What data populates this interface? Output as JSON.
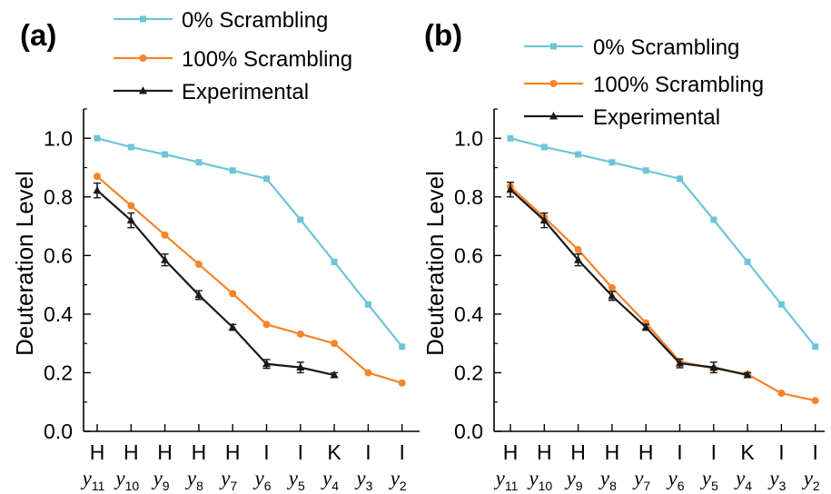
{
  "chart_data": [
    {
      "type": "line",
      "panel_label": "(a)",
      "ylabel": "Deuteration Level",
      "xlabel": "",
      "ylim": [
        0.0,
        1.1
      ],
      "yticks": [
        "0.0",
        "0.2",
        "0.4",
        "0.6",
        "0.8",
        "1.0"
      ],
      "categories": [
        {
          "residue": "H",
          "ion": "y",
          "sub": "11"
        },
        {
          "residue": "H",
          "ion": "y",
          "sub": "10"
        },
        {
          "residue": "H",
          "ion": "y",
          "sub": "9"
        },
        {
          "residue": "H",
          "ion": "y",
          "sub": "8"
        },
        {
          "residue": "H",
          "ion": "y",
          "sub": "7"
        },
        {
          "residue": "I",
          "ion": "y",
          "sub": "6"
        },
        {
          "residue": "I",
          "ion": "y",
          "sub": "5"
        },
        {
          "residue": "K",
          "ion": "y",
          "sub": "4"
        },
        {
          "residue": "I",
          "ion": "y",
          "sub": "3"
        },
        {
          "residue": "I",
          "ion": "y",
          "sub": "2"
        }
      ],
      "legend_position": "top",
      "series": [
        {
          "name": "0% Scrambling",
          "color": "#6cc5d8",
          "marker": "square",
          "values": [
            1.0,
            0.97,
            0.945,
            0.918,
            0.89,
            0.862,
            0.722,
            0.578,
            0.433,
            0.289
          ]
        },
        {
          "name": "100% Scrambling",
          "color": "#f5842a",
          "marker": "circle",
          "values": [
            0.87,
            0.77,
            0.67,
            0.57,
            0.47,
            0.365,
            0.332,
            0.3,
            0.2,
            0.165
          ]
        },
        {
          "name": "Experimental",
          "color": "#1a1a1a",
          "marker": "triangle",
          "values": [
            0.822,
            0.72,
            0.585,
            0.465,
            0.355,
            0.23,
            0.218,
            0.192,
            null,
            null
          ],
          "errors": [
            0.025,
            0.025,
            0.02,
            0.015,
            0.01,
            0.015,
            0.018,
            0.008,
            null,
            null
          ]
        }
      ]
    },
    {
      "type": "line",
      "panel_label": "(b)",
      "ylabel": "Deuteration Level",
      "xlabel": "",
      "ylim": [
        0.0,
        1.1
      ],
      "yticks": [
        "0.0",
        "0.2",
        "0.4",
        "0.6",
        "0.8",
        "1.0"
      ],
      "categories": [
        {
          "residue": "H",
          "ion": "y",
          "sub": "11"
        },
        {
          "residue": "H",
          "ion": "y",
          "sub": "10"
        },
        {
          "residue": "H",
          "ion": "y",
          "sub": "9"
        },
        {
          "residue": "H",
          "ion": "y",
          "sub": "8"
        },
        {
          "residue": "H",
          "ion": "y",
          "sub": "7"
        },
        {
          "residue": "I",
          "ion": "y",
          "sub": "6"
        },
        {
          "residue": "I",
          "ion": "y",
          "sub": "5"
        },
        {
          "residue": "K",
          "ion": "y",
          "sub": "4"
        },
        {
          "residue": "I",
          "ion": "y",
          "sub": "3"
        },
        {
          "residue": "I",
          "ion": "y",
          "sub": "2"
        }
      ],
      "legend_position": "top",
      "series": [
        {
          "name": "0% Scrambling",
          "color": "#6cc5d8",
          "marker": "square",
          "values": [
            1.0,
            0.97,
            0.945,
            0.918,
            0.89,
            0.862,
            0.722,
            0.578,
            0.433,
            0.289
          ]
        },
        {
          "name": "100% Scrambling",
          "color": "#f5842a",
          "marker": "circle",
          "values": [
            0.835,
            0.73,
            0.62,
            0.49,
            0.37,
            0.238,
            0.215,
            0.195,
            0.13,
            0.105
          ]
        },
        {
          "name": "Experimental",
          "color": "#1a1a1a",
          "marker": "triangle",
          "values": [
            0.825,
            0.72,
            0.585,
            0.462,
            0.355,
            0.232,
            0.218,
            0.192,
            null,
            null
          ],
          "errors": [
            0.025,
            0.025,
            0.02,
            0.015,
            0.01,
            0.015,
            0.018,
            0.008,
            null,
            null
          ]
        }
      ]
    }
  ]
}
